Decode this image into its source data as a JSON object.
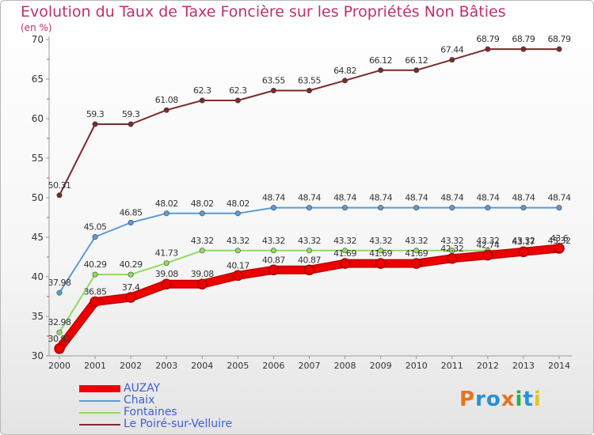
{
  "title": "Evolution du Taux de Taxe Foncière sur les Propriétés Non Bâties",
  "unit_label": "(en %)",
  "brand": "Proxiti",
  "chart_data": {
    "type": "line",
    "title": "Evolution du Taux de Taxe Foncière sur les Propriétés Non Bâties",
    "ylabel": "(en %)",
    "xlabel": "",
    "ylim": [
      30,
      70
    ],
    "yticks": [
      30,
      35,
      40,
      45,
      50,
      55,
      60,
      65,
      70
    ],
    "x": [
      "2000",
      "2001",
      "2002",
      "2003",
      "2004",
      "2005",
      "2006",
      "2007",
      "2008",
      "2009",
      "2010",
      "2011",
      "2012",
      "2013",
      "2014"
    ],
    "grid": false,
    "legend_position": "bottom-left",
    "series": [
      {
        "name": "AUZAY",
        "color": "#ee0000",
        "style": "thick",
        "values": [
          30.92,
          36.85,
          37.4,
          39.08,
          39.08,
          40.17,
          40.87,
          40.87,
          41.69,
          41.69,
          41.69,
          42.32,
          42.74,
          43.17,
          43.6
        ],
        "labels": [
          "30.92",
          "36.85",
          "37.4",
          "39.08",
          "39.08",
          "40.17",
          "40.87",
          "40.87",
          "41.69",
          "41.69",
          "41.69",
          "42.32",
          "42.74",
          "43.17",
          "43.6"
        ]
      },
      {
        "name": "Chaix",
        "color": "#5b9bd5",
        "style": "thin",
        "values": [
          37.98,
          45.05,
          46.85,
          48.02,
          48.02,
          48.02,
          48.74,
          48.74,
          48.74,
          48.74,
          48.74,
          48.74,
          48.74,
          48.74,
          48.74
        ],
        "labels": [
          "37.98",
          "45.05",
          "46.85",
          "48.02",
          "48.02",
          "48.02",
          "48.74",
          "48.74",
          "48.74",
          "48.74",
          "48.74",
          "48.74",
          "48.74",
          "48.74",
          "48.74"
        ]
      },
      {
        "name": "Fontaines",
        "color": "#8fdc60",
        "style": "thin",
        "values": [
          32.98,
          40.29,
          40.29,
          41.73,
          43.32,
          43.32,
          43.32,
          43.32,
          43.32,
          43.32,
          43.32,
          43.32,
          43.32,
          43.32,
          43.32
        ],
        "labels": [
          "32.98",
          "40.29",
          "40.29",
          "41.73",
          "43.32",
          "43.32",
          "43.32",
          "43.32",
          "43.32",
          "43.32",
          "43.32",
          "43.32",
          "43.32",
          "43.32",
          "43.32"
        ]
      },
      {
        "name": "Le Poiré-sur-Velluire",
        "color": "#7b2a2a",
        "style": "thin",
        "values": [
          50.31,
          59.3,
          59.3,
          61.08,
          62.3,
          62.3,
          63.55,
          63.55,
          64.82,
          66.12,
          66.12,
          67.44,
          68.79,
          68.79,
          68.79
        ],
        "labels": [
          "50.31",
          "59.3",
          "59.3",
          "61.08",
          "62.3",
          "62.3",
          "63.55",
          "63.55",
          "64.82",
          "66.12",
          "66.12",
          "67.44",
          "68.79",
          "68.79",
          "68.79"
        ]
      }
    ]
  }
}
